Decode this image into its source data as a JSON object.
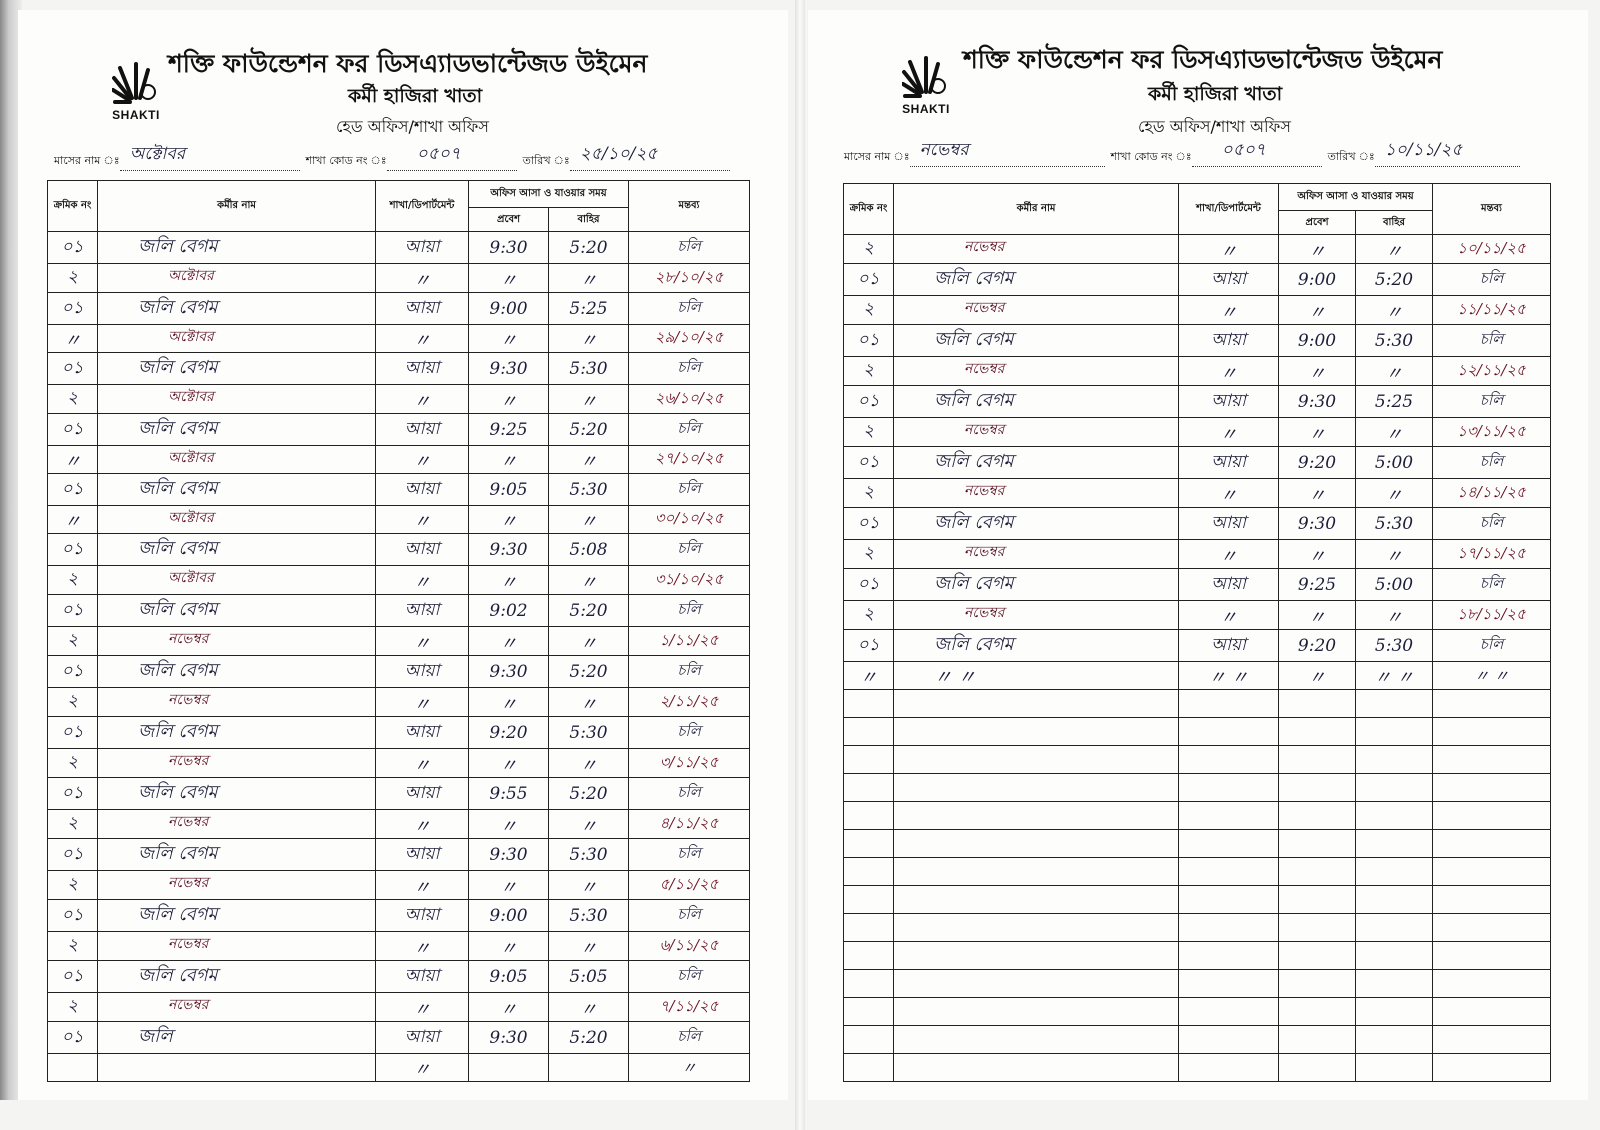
{
  "header": {
    "logo_text": "SHAKTI",
    "org_name": "শক্তি ফাউন্ডেশন ফর ডিসএ্যাডভান্টেজড উইমেন",
    "register_title": "কর্মী হাজিরা খাতা",
    "office_type": "হেড অফিস/শাখা অফিস",
    "month_label": "মাসের নাম ঃ",
    "branch_code_label": "শাখা কোড নং ঃ",
    "date_label": "তারিখ ঃ"
  },
  "columns": {
    "serial": "ক্রমিক নং",
    "name": "কর্মীর নাম",
    "department": "শাখা/ডিপার্টমেন্ট",
    "time_group": "অফিস আসা ও যাওয়ার সময়",
    "entry": "প্রবেশ",
    "exit": "বাহির",
    "remarks": "মন্তব্য"
  },
  "left_page": {
    "month": "অক্টোবর",
    "branch_code": "০৫০৭",
    "date": "২৫/১০/২৫",
    "rows": [
      {
        "no": "০১",
        "name": "জলি বেগম",
        "dept": "আয়া",
        "in": "9:30",
        "out": "5:20",
        "remark": "চলি"
      },
      {
        "no": "২",
        "name": "অক্টোবর",
        "dept": "〃",
        "in": "〃",
        "out": "〃",
        "remark": "২৮/১০/২৫"
      },
      {
        "no": "০১",
        "name": "জলি বেগম",
        "dept": "আয়া",
        "in": "9:00",
        "out": "5:25",
        "remark": "চলি"
      },
      {
        "no": "〃",
        "name": "অক্টোবর",
        "dept": "〃",
        "in": "〃",
        "out": "〃",
        "remark": "২৯/১০/২৫"
      },
      {
        "no": "০১",
        "name": "জলি বেগম",
        "dept": "আয়া",
        "in": "9:30",
        "out": "5:30",
        "remark": "চলি"
      },
      {
        "no": "২",
        "name": "অক্টোবর",
        "dept": "〃",
        "in": "〃",
        "out": "〃",
        "remark": "২৬/১০/২৫"
      },
      {
        "no": "০১",
        "name": "জলি বেগম",
        "dept": "আয়া",
        "in": "9:25",
        "out": "5:20",
        "remark": "চলি"
      },
      {
        "no": "〃",
        "name": "অক্টোবর",
        "dept": "〃",
        "in": "〃",
        "out": "〃",
        "remark": "২৭/১০/২৫"
      },
      {
        "no": "০১",
        "name": "জলি বেগম",
        "dept": "আয়া",
        "in": "9:05",
        "out": "5:30",
        "remark": "চলি"
      },
      {
        "no": "〃",
        "name": "অক্টোবর",
        "dept": "〃",
        "in": "〃",
        "out": "〃",
        "remark": "৩০/১০/২৫"
      },
      {
        "no": "০১",
        "name": "জলি বেগম",
        "dept": "আয়া",
        "in": "9:30",
        "out": "5:08",
        "remark": "চলি"
      },
      {
        "no": "২",
        "name": "অক্টোবর",
        "dept": "〃",
        "in": "〃",
        "out": "〃",
        "remark": "৩১/১০/২৫"
      },
      {
        "no": "০১",
        "name": "জলি বেগম",
        "dept": "আয়া",
        "in": "9:02",
        "out": "5:20",
        "remark": "চলি"
      },
      {
        "no": "২",
        "name": "নভেম্বর",
        "dept": "〃",
        "in": "〃",
        "out": "〃",
        "remark": "১/১১/২৫"
      },
      {
        "no": "০১",
        "name": "জলি বেগম",
        "dept": "আয়া",
        "in": "9:30",
        "out": "5:20",
        "remark": "চলি"
      },
      {
        "no": "২",
        "name": "নভেম্বর",
        "dept": "〃",
        "in": "〃",
        "out": "〃",
        "remark": "২/১১/২৫"
      },
      {
        "no": "০১",
        "name": "জলি বেগম",
        "dept": "আয়া",
        "in": "9:20",
        "out": "5:30",
        "remark": "চলি"
      },
      {
        "no": "২",
        "name": "নভেম্বর",
        "dept": "〃",
        "in": "〃",
        "out": "〃",
        "remark": "৩/১১/২৫"
      },
      {
        "no": "০১",
        "name": "জলি বেগম",
        "dept": "আয়া",
        "in": "9:55",
        "out": "5:20",
        "remark": "চলি"
      },
      {
        "no": "২",
        "name": "নভেম্বর",
        "dept": "〃",
        "in": "〃",
        "out": "〃",
        "remark": "৪/১১/২৫"
      },
      {
        "no": "০১",
        "name": "জলি বেগম",
        "dept": "আয়া",
        "in": "9:30",
        "out": "5:30",
        "remark": "চলি"
      },
      {
        "no": "২",
        "name": "নভেম্বর",
        "dept": "〃",
        "in": "〃",
        "out": "〃",
        "remark": "৫/১১/২৫"
      },
      {
        "no": "০১",
        "name": "জলি বেগম",
        "dept": "আয়া",
        "in": "9:00",
        "out": "5:30",
        "remark": "চলি"
      },
      {
        "no": "২",
        "name": "নভেম্বর",
        "dept": "〃",
        "in": "〃",
        "out": "〃",
        "remark": "৬/১১/২৫"
      },
      {
        "no": "০১",
        "name": "জলি বেগম",
        "dept": "আয়া",
        "in": "9:05",
        "out": "5:05",
        "remark": "চলি"
      },
      {
        "no": "২",
        "name": "নভেম্বর",
        "dept": "〃",
        "in": "〃",
        "out": "〃",
        "remark": "৭/১১/২৫"
      },
      {
        "no": "০১",
        "name": "জলি",
        "dept": "আয়া",
        "in": "9:30",
        "out": "5:20",
        "remark": "চলি"
      },
      {
        "no": "",
        "name": "",
        "dept": "〃",
        "in": "",
        "out": "",
        "remark": "〃"
      }
    ]
  },
  "right_page": {
    "month": "নভেম্বর",
    "branch_code": "০৫০৭",
    "date": "১০/১১/২৫",
    "rows": [
      {
        "no": "২",
        "name": "নভেম্বর",
        "dept": "〃",
        "in": "〃",
        "out": "〃",
        "remark": "১০/১১/২৫"
      },
      {
        "no": "০১",
        "name": "জলি বেগম",
        "dept": "আয়া",
        "in": "9:00",
        "out": "5:20",
        "remark": "চলি"
      },
      {
        "no": "২",
        "name": "নভেম্বর",
        "dept": "〃",
        "in": "〃",
        "out": "〃",
        "remark": "১১/১১/২৫"
      },
      {
        "no": "০১",
        "name": "জলি বেগম",
        "dept": "আয়া",
        "in": "9:00",
        "out": "5:30",
        "remark": "চলি"
      },
      {
        "no": "২",
        "name": "নভেম্বর",
        "dept": "〃",
        "in": "〃",
        "out": "〃",
        "remark": "১২/১১/২৫"
      },
      {
        "no": "০১",
        "name": "জলি বেগম",
        "dept": "আয়া",
        "in": "9:30",
        "out": "5:25",
        "remark": "চলি"
      },
      {
        "no": "২",
        "name": "নভেম্বর",
        "dept": "〃",
        "in": "〃",
        "out": "〃",
        "remark": "১৩/১১/২৫"
      },
      {
        "no": "০১",
        "name": "জলি বেগম",
        "dept": "আয়া",
        "in": "9:20",
        "out": "5:00",
        "remark": "চলি"
      },
      {
        "no": "২",
        "name": "নভেম্বর",
        "dept": "〃",
        "in": "〃",
        "out": "〃",
        "remark": "১৪/১১/২৫"
      },
      {
        "no": "০১",
        "name": "জলি বেগম",
        "dept": "আয়া",
        "in": "9:30",
        "out": "5:30",
        "remark": "চলি"
      },
      {
        "no": "২",
        "name": "নভেম্বর",
        "dept": "〃",
        "in": "〃",
        "out": "〃",
        "remark": "১৭/১১/২৫"
      },
      {
        "no": "০১",
        "name": "জলি বেগম",
        "dept": "আয়া",
        "in": "9:25",
        "out": "5:00",
        "remark": "চলি"
      },
      {
        "no": "২",
        "name": "নভেম্বর",
        "dept": "〃",
        "in": "〃",
        "out": "〃",
        "remark": "১৮/১১/২৫"
      },
      {
        "no": "০১",
        "name": "জলি বেগম",
        "dept": "আয়া",
        "in": "9:20",
        "out": "5:30",
        "remark": "চলি"
      },
      {
        "no": "〃",
        "name": "〃  〃",
        "dept": "〃  〃",
        "in": "〃",
        "out": "〃  〃",
        "remark": "〃  〃"
      },
      {
        "no": "",
        "name": "",
        "dept": "",
        "in": "",
        "out": "",
        "remark": ""
      },
      {
        "no": "",
        "name": "",
        "dept": "",
        "in": "",
        "out": "",
        "remark": ""
      },
      {
        "no": "",
        "name": "",
        "dept": "",
        "in": "",
        "out": "",
        "remark": ""
      },
      {
        "no": "",
        "name": "",
        "dept": "",
        "in": "",
        "out": "",
        "remark": ""
      },
      {
        "no": "",
        "name": "",
        "dept": "",
        "in": "",
        "out": "",
        "remark": ""
      },
      {
        "no": "",
        "name": "",
        "dept": "",
        "in": "",
        "out": "",
        "remark": ""
      },
      {
        "no": "",
        "name": "",
        "dept": "",
        "in": "",
        "out": "",
        "remark": ""
      },
      {
        "no": "",
        "name": "",
        "dept": "",
        "in": "",
        "out": "",
        "remark": ""
      },
      {
        "no": "",
        "name": "",
        "dept": "",
        "in": "",
        "out": "",
        "remark": ""
      },
      {
        "no": "",
        "name": "",
        "dept": "",
        "in": "",
        "out": "",
        "remark": ""
      },
      {
        "no": "",
        "name": "",
        "dept": "",
        "in": "",
        "out": "",
        "remark": ""
      },
      {
        "no": "",
        "name": "",
        "dept": "",
        "in": "",
        "out": "",
        "remark": ""
      },
      {
        "no": "",
        "name": "",
        "dept": "",
        "in": "",
        "out": "",
        "remark": ""
      },
      {
        "no": "",
        "name": "",
        "dept": "",
        "in": "",
        "out": "",
        "remark": ""
      }
    ]
  }
}
